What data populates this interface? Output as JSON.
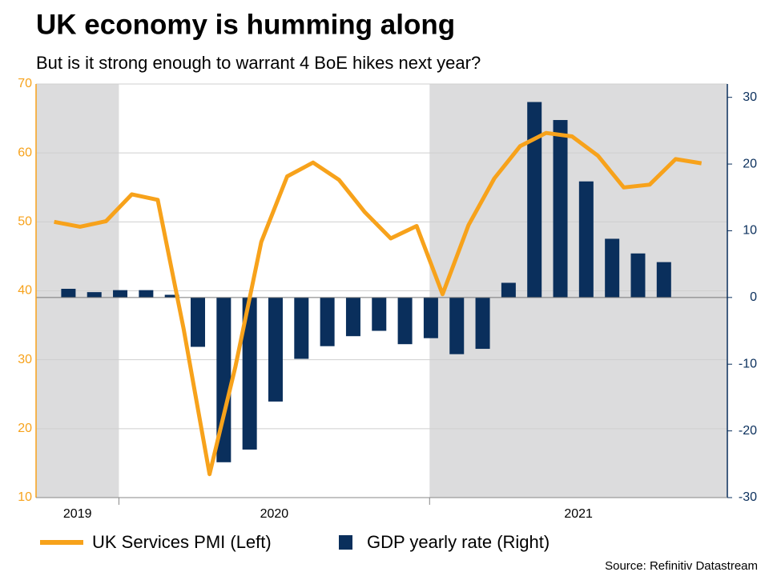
{
  "chart_data": {
    "type": "bar-line",
    "title": "UK economy is humming along",
    "subtitle": "But is it strong enough to warrant 4 BoE hikes next year?",
    "source": "Source: Refinitiv Datastream",
    "categories": [
      null,
      null,
      null,
      null,
      null,
      null,
      null,
      null,
      null,
      null,
      null,
      null,
      null,
      null,
      null,
      null,
      null,
      null,
      null,
      null,
      null,
      null,
      null,
      null,
      null,
      null
    ],
    "x_groups": [
      {
        "label": "2019",
        "months": 3,
        "shaded": true
      },
      {
        "label": "2020",
        "months": 12,
        "shaded": false
      },
      {
        "label": "2021",
        "months": 11,
        "shaded": true
      }
    ],
    "series": [
      {
        "name": "UK Services PMI (Left)",
        "color": "#f7a21b",
        "type": "line",
        "axis": "y",
        "values": [
          50.0,
          49.3,
          50.1,
          54.0,
          53.2,
          34.5,
          13.4,
          29.0,
          47.1,
          56.6,
          58.6,
          56.1,
          51.4,
          47.6,
          49.4,
          39.5,
          49.5,
          56.3,
          61.0,
          62.9,
          62.4,
          59.6,
          55.0,
          55.4,
          59.1,
          58.5
        ]
      },
      {
        "name": "GDP yearly rate (Right)",
        "color": "#0a2f5c",
        "type": "bar",
        "axis": "y2",
        "values": [
          1.3,
          0.8,
          1.1,
          1.1,
          0.4,
          -7.4,
          -24.7,
          -22.8,
          -15.6,
          -9.2,
          -7.3,
          -5.8,
          -5.0,
          -7.0,
          -6.1,
          -8.5,
          -7.7,
          2.2,
          29.3,
          26.6,
          17.4,
          8.8,
          6.6,
          5.3,
          null,
          null
        ]
      }
    ],
    "ylim": [
      10,
      70
    ],
    "yticks": [
      10,
      20,
      30,
      40,
      50,
      60,
      70
    ],
    "y2lim": [
      -30,
      32
    ],
    "y2ticks": [
      -30,
      -20,
      -10,
      0,
      10,
      20,
      30
    ],
    "grid": true
  }
}
